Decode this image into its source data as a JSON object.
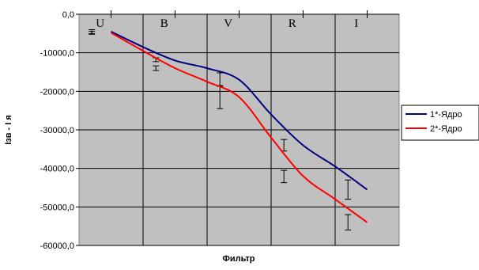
{
  "chart_data": {
    "type": "line",
    "title": "",
    "xlabel": "Фильтр",
    "ylabel": "Iзв - I я",
    "categories": [
      "U",
      "B",
      "V",
      "R",
      "I"
    ],
    "ylim": [
      -60000,
      0
    ],
    "y_ticks": [
      "0,0",
      "-10000,0",
      "-20000,0",
      "-30000,0",
      "-40000,0",
      "-50000,0",
      "-60000,0"
    ],
    "y_tick_values": [
      0,
      -10000,
      -20000,
      -30000,
      -40000,
      -50000,
      -60000
    ],
    "grid": true,
    "legend_position": "right",
    "series": [
      {
        "name": "1*-Ядро",
        "color": "#000080",
        "points": [
          {
            "x": 0.5,
            "y": -4500
          },
          {
            "x": 1.0,
            "y": -8500
          },
          {
            "x": 1.5,
            "y": -12000
          },
          {
            "x": 2.0,
            "y": -14000
          },
          {
            "x": 2.5,
            "y": -17000
          },
          {
            "x": 3.0,
            "y": -26000
          },
          {
            "x": 3.5,
            "y": -34000
          },
          {
            "x": 4.0,
            "y": -39500
          },
          {
            "x": 4.5,
            "y": -45500
          }
        ],
        "error_bars": [
          {
            "x": 0.2,
            "y": -4500,
            "low": -5000,
            "high": -4000
          },
          {
            "x": 1.2,
            "y": -11800,
            "low": -12300,
            "high": -11300
          },
          {
            "x": 2.2,
            "y": -17000,
            "low": -18500,
            "high": -15200
          },
          {
            "x": 3.2,
            "y": -34000,
            "low": -35500,
            "high": -32500
          },
          {
            "x": 4.2,
            "y": -45500,
            "low": -48000,
            "high": -43000
          }
        ]
      },
      {
        "name": "2*-Ядро",
        "color": "#ff0000",
        "points": [
          {
            "x": 0.5,
            "y": -4800
          },
          {
            "x": 1.0,
            "y": -9500
          },
          {
            "x": 1.5,
            "y": -14000
          },
          {
            "x": 2.0,
            "y": -17500
          },
          {
            "x": 2.5,
            "y": -21500
          },
          {
            "x": 3.0,
            "y": -32000
          },
          {
            "x": 3.5,
            "y": -42000
          },
          {
            "x": 4.0,
            "y": -48000
          },
          {
            "x": 4.5,
            "y": -54000
          }
        ],
        "error_bars": [
          {
            "x": 0.2,
            "y": -4800,
            "low": -5200,
            "high": -4400
          },
          {
            "x": 1.2,
            "y": -14000,
            "low": -14600,
            "high": -13400
          },
          {
            "x": 2.2,
            "y": -21500,
            "low": -24500,
            "high": -18700
          },
          {
            "x": 3.2,
            "y": -42000,
            "low": -43700,
            "high": -40500
          },
          {
            "x": 4.2,
            "y": -54000,
            "low": -56000,
            "high": -52000
          }
        ]
      }
    ]
  }
}
